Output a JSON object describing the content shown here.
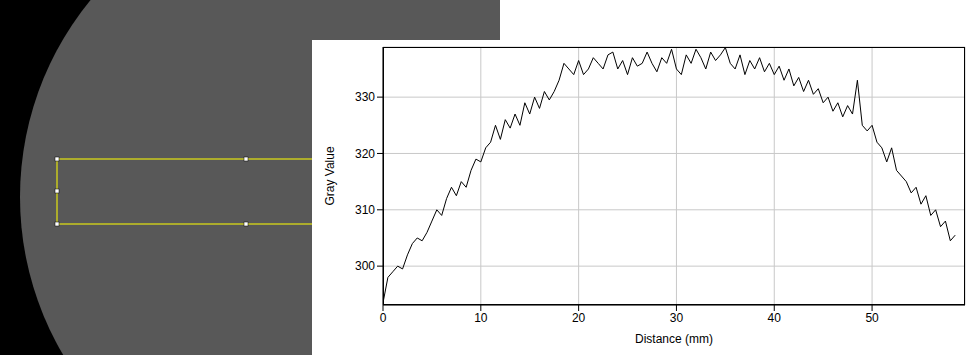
{
  "chart_data": {
    "type": "line",
    "x_label": "Distance (mm)",
    "y_label": "Gray Value",
    "color": "#000000",
    "grid": true,
    "xlim": [
      0,
      59.5
    ],
    "ylim": [
      293.1,
      338.9
    ],
    "xticks": [
      0,
      10,
      20,
      30,
      40,
      50
    ],
    "yticks": [
      300,
      310,
      320,
      330
    ],
    "x": [
      0,
      0.5,
      1,
      1.5,
      2,
      2.5,
      3,
      3.5,
      4,
      4.5,
      5,
      5.5,
      6,
      6.5,
      7,
      7.5,
      8,
      8.5,
      9,
      9.5,
      10,
      10.5,
      11,
      11.5,
      12,
      12.5,
      13,
      13.5,
      14,
      14.5,
      15,
      15.5,
      16,
      16.5,
      17,
      17.5,
      18,
      18.5,
      19,
      19.5,
      20,
      20.5,
      21,
      21.5,
      22,
      22.5,
      23,
      23.5,
      24,
      24.5,
      25,
      25.5,
      26,
      26.5,
      27,
      27.5,
      28,
      28.5,
      29,
      29.5,
      30,
      30.5,
      31,
      31.5,
      32,
      32.5,
      33,
      33.5,
      34,
      34.5,
      35,
      35.5,
      36,
      36.5,
      37,
      37.5,
      38,
      38.5,
      39,
      39.5,
      40,
      40.5,
      41,
      41.5,
      42,
      42.5,
      43,
      43.5,
      44,
      44.5,
      45,
      45.5,
      46,
      46.5,
      47,
      47.5,
      48,
      48.5,
      49,
      49.5,
      50,
      50.5,
      51,
      51.5,
      52,
      52.5,
      53,
      53.5,
      54,
      54.5,
      55,
      55.5,
      56,
      56.5,
      57,
      57.5,
      58,
      58.5
    ],
    "values": [
      293.5,
      298,
      299,
      300,
      299.5,
      302,
      304,
      305,
      304.5,
      306,
      308,
      310,
      309,
      312,
      314,
      312.5,
      315,
      314,
      317,
      319,
      318.5,
      321,
      322,
      325,
      322.5,
      326,
      324.5,
      327,
      325,
      329,
      327,
      330,
      328,
      331,
      329.5,
      331,
      333,
      336,
      335,
      334,
      336.5,
      334,
      335,
      337,
      336,
      335,
      337.5,
      338,
      335,
      336.5,
      334,
      337,
      335.5,
      336,
      338,
      336,
      334.5,
      337,
      336,
      338.5,
      335,
      334,
      337.5,
      336,
      338.5,
      337,
      335,
      338,
      336.5,
      337.5,
      338.8,
      336,
      335,
      337.5,
      334,
      336.5,
      335,
      337,
      334.5,
      336,
      334,
      335.5,
      333,
      335,
      332,
      333.5,
      331,
      333,
      330.5,
      331.5,
      329,
      330,
      327.5,
      329,
      326.5,
      328.5,
      327,
      333,
      325,
      324,
      325,
      322,
      321,
      318.5,
      321,
      317,
      316,
      315,
      313,
      314,
      311,
      312.5,
      309,
      310,
      307,
      308,
      304.5,
      305.5
    ]
  }
}
